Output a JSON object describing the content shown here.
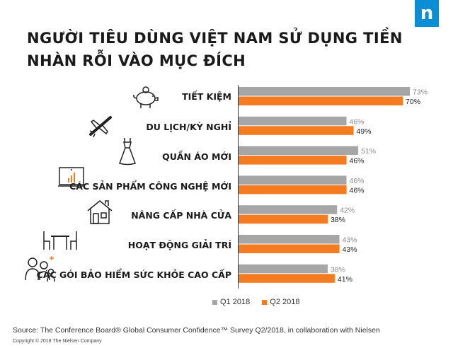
{
  "title_line1": "NGƯỜI TIÊU DÙNG VIỆT NAM SỬ DỤNG TIỀN",
  "title_line2": "NHÀN RỖI VÀO MỤC ĐÍCH",
  "logo_letter": "n",
  "source": "Source: The Conference Board® Global Consumer Confidence™ Survey Q2/2018, in collaboration with Nielsen",
  "copyright": "Copyright © 2018 The Nielsen Company",
  "colors": {
    "q1": "#a6a6a6",
    "q2": "#f47b20",
    "logo": "#0a8fd6"
  },
  "icons": [
    "piggy-bank-icon",
    "airplane-icon",
    "dress-icon",
    "monitor-chart-icon",
    "house-icon",
    "table-chairs-icon",
    "family-plus-icon"
  ],
  "chart_data": {
    "type": "bar",
    "orientation": "horizontal",
    "categories": [
      "TIẾT KIỆM",
      "DU LỊCH/KỲ NGHỈ",
      "QUẦN ÁO MỚI",
      "CÁC SẢN PHẨM CÔNG NGHỆ MỚI",
      "NÂNG CẤP NHÀ CỬA",
      "HOẠT ĐỘNG GIẢI TRÍ",
      "CÁC GÓI BẢO HIỂM SỨC KHỎE CAO CẤP"
    ],
    "series": [
      {
        "name": "Q1 2018",
        "values": [
          73,
          46,
          51,
          46,
          42,
          43,
          38
        ],
        "labels": [
          "73%",
          "46%",
          "51%",
          "46%",
          "42%",
          "43%",
          "38%"
        ]
      },
      {
        "name": "Q2 2018",
        "values": [
          70,
          49,
          46,
          46,
          38,
          43,
          41
        ],
        "labels": [
          "70%",
          "49%",
          "46%",
          "46%",
          "38%",
          "43%",
          "41%"
        ]
      }
    ],
    "xlim": [
      0,
      73
    ],
    "legend_position": "bottom"
  }
}
